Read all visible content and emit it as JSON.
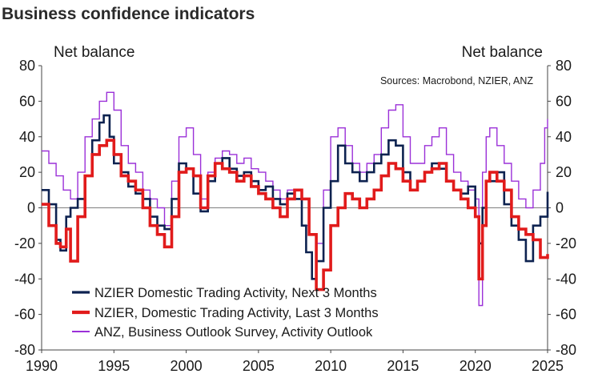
{
  "chart_data": {
    "type": "line",
    "title": "Business confidence indicators",
    "ylabel_left": "Net balance",
    "ylabel_right": "Net balance",
    "source": "Sources: Macrobond, NZIER, ANZ",
    "xlim": [
      1990,
      2025
    ],
    "ylim": [
      -80,
      80
    ],
    "x_ticks": [
      1990,
      1995,
      2000,
      2005,
      2010,
      2015,
      2020,
      2025
    ],
    "y_ticks": [
      -80,
      -60,
      -40,
      -20,
      0,
      20,
      40,
      60,
      80
    ],
    "grid": false,
    "legend_position": "bottom-left",
    "series": [
      {
        "name": "NZIER Domestic Trading Activity, Next 3 Months",
        "color": "#0d2250",
        "x": [
          1990.0,
          1990.5,
          1991.0,
          1991.3,
          1991.7,
          1992.0,
          1992.5,
          1993.0,
          1993.5,
          1994.0,
          1994.3,
          1994.7,
          1995.0,
          1995.5,
          1996.0,
          1996.5,
          1997.0,
          1997.5,
          1998.0,
          1998.5,
          1999.0,
          1999.5,
          2000.0,
          2000.5,
          2001.0,
          2001.5,
          2002.0,
          2002.5,
          2003.0,
          2003.5,
          2004.0,
          2004.5,
          2005.0,
          2005.5,
          2006.0,
          2006.5,
          2007.0,
          2007.5,
          2008.0,
          2008.3,
          2008.7,
          2009.0,
          2009.5,
          2010.0,
          2010.5,
          2011.0,
          2011.5,
          2012.0,
          2012.5,
          2013.0,
          2013.5,
          2014.0,
          2014.5,
          2015.0,
          2015.5,
          2016.0,
          2016.5,
          2017.0,
          2017.5,
          2018.0,
          2018.5,
          2019.0,
          2019.5,
          2020.0,
          2020.25,
          2020.5,
          2020.75,
          2021.0,
          2021.5,
          2022.0,
          2022.5,
          2023.0,
          2023.5,
          2024.0,
          2024.5,
          2025.0
        ],
        "y": [
          10,
          2,
          -18,
          -24,
          -5,
          0,
          5,
          18,
          38,
          48,
          52,
          40,
          25,
          20,
          12,
          8,
          5,
          -5,
          -10,
          -12,
          5,
          25,
          22,
          8,
          -2,
          15,
          25,
          28,
          22,
          18,
          20,
          15,
          10,
          12,
          5,
          2,
          8,
          5,
          -10,
          -25,
          -40,
          -30,
          0,
          15,
          35,
          25,
          20,
          15,
          20,
          25,
          30,
          38,
          35,
          20,
          10,
          15,
          20,
          25,
          22,
          15,
          10,
          8,
          12,
          -5,
          -20,
          0,
          15,
          15,
          20,
          2,
          -10,
          -18,
          -30,
          -10,
          -5,
          9
        ]
      },
      {
        "name": "NZIER, Domestic Trading Activity, Last 3 Months",
        "color": "#e11b1b",
        "x": [
          1990.0,
          1990.5,
          1991.0,
          1991.3,
          1991.7,
          1992.0,
          1992.5,
          1993.0,
          1993.5,
          1994.0,
          1994.5,
          1995.0,
          1995.5,
          1996.0,
          1996.5,
          1997.0,
          1997.5,
          1998.0,
          1998.5,
          1999.0,
          1999.5,
          2000.0,
          2000.5,
          2001.0,
          2001.5,
          2002.0,
          2002.5,
          2003.0,
          2003.5,
          2004.0,
          2004.5,
          2005.0,
          2005.5,
          2006.0,
          2006.5,
          2007.0,
          2007.5,
          2008.0,
          2008.5,
          2009.0,
          2009.5,
          2010.0,
          2010.5,
          2011.0,
          2011.5,
          2012.0,
          2012.5,
          2013.0,
          2013.5,
          2014.0,
          2014.5,
          2015.0,
          2015.5,
          2016.0,
          2016.5,
          2017.0,
          2017.5,
          2018.0,
          2018.5,
          2019.0,
          2019.5,
          2020.0,
          2020.25,
          2020.5,
          2020.75,
          2021.0,
          2021.5,
          2022.0,
          2022.5,
          2023.0,
          2023.5,
          2024.0,
          2024.5,
          2025.0
        ],
        "y": [
          2,
          -10,
          -20,
          -22,
          -12,
          -30,
          -5,
          18,
          30,
          35,
          38,
          30,
          18,
          15,
          10,
          0,
          -10,
          -15,
          -22,
          -5,
          20,
          22,
          18,
          0,
          18,
          25,
          22,
          20,
          15,
          18,
          12,
          8,
          5,
          0,
          -5,
          5,
          10,
          5,
          -15,
          -46,
          -35,
          -10,
          0,
          8,
          5,
          0,
          5,
          10,
          18,
          25,
          22,
          15,
          10,
          15,
          20,
          22,
          25,
          15,
          10,
          5,
          0,
          -5,
          -40,
          -10,
          15,
          20,
          15,
          10,
          -5,
          -12,
          -15,
          -18,
          -28,
          -26
        ]
      },
      {
        "name": "ANZ, Business Outlook Survey, Activity Outlook",
        "color": "#9b30d8",
        "x": [
          1990.0,
          1990.5,
          1991.0,
          1991.5,
          1992.0,
          1992.5,
          1993.0,
          1993.5,
          1994.0,
          1994.5,
          1995.0,
          1995.5,
          1996.0,
          1996.5,
          1997.0,
          1997.5,
          1998.0,
          1998.5,
          1999.0,
          1999.5,
          2000.0,
          2000.5,
          2001.0,
          2001.5,
          2002.0,
          2002.5,
          2003.0,
          2003.5,
          2004.0,
          2004.5,
          2005.0,
          2005.5,
          2006.0,
          2006.5,
          2007.0,
          2007.5,
          2008.0,
          2008.5,
          2009.0,
          2009.5,
          2010.0,
          2010.5,
          2011.0,
          2011.5,
          2012.0,
          2012.5,
          2013.0,
          2013.5,
          2014.0,
          2014.5,
          2015.0,
          2015.5,
          2016.0,
          2016.5,
          2017.0,
          2017.5,
          2018.0,
          2018.5,
          2019.0,
          2019.5,
          2020.0,
          2020.25,
          2020.5,
          2020.75,
          2021.0,
          2021.5,
          2022.0,
          2022.5,
          2023.0,
          2023.5,
          2024.0,
          2024.5,
          2024.8,
          2025.0
        ],
        "y": [
          32,
          25,
          18,
          10,
          5,
          20,
          40,
          50,
          60,
          65,
          55,
          35,
          25,
          20,
          10,
          5,
          0,
          -10,
          15,
          40,
          45,
          30,
          5,
          20,
          28,
          32,
          30,
          25,
          28,
          22,
          20,
          15,
          10,
          5,
          10,
          5,
          -10,
          -15,
          -20,
          10,
          40,
          45,
          35,
          25,
          20,
          25,
          30,
          45,
          55,
          58,
          40,
          25,
          25,
          35,
          40,
          45,
          30,
          20,
          15,
          10,
          5,
          -55,
          20,
          40,
          45,
          35,
          25,
          15,
          5,
          0,
          10,
          25,
          45,
          50
        ]
      }
    ]
  }
}
